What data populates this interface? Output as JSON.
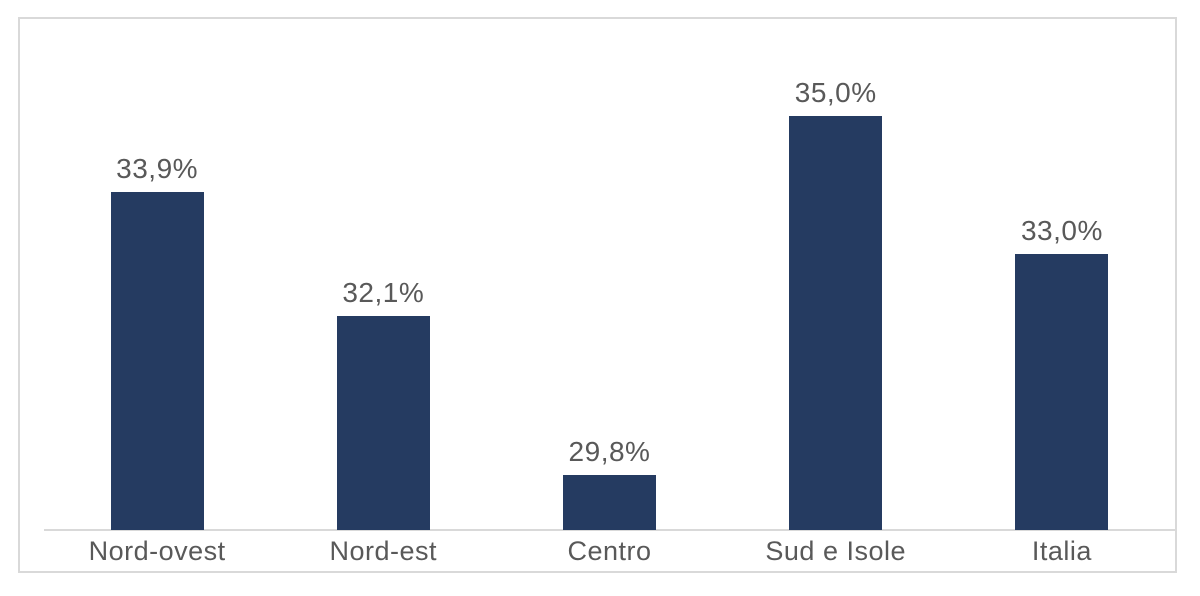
{
  "chart_data": {
    "type": "bar",
    "categories": [
      "Nord-ovest",
      "Nord-est",
      "Centro",
      "Sud e Isole",
      "Italia"
    ],
    "values": [
      33.9,
      32.1,
      29.8,
      35.0,
      33.0
    ],
    "data_labels": [
      "33,9%",
      "32,1%",
      "29,8%",
      "35,0%",
      "33,0%"
    ],
    "title": "",
    "xlabel": "",
    "ylabel": "",
    "ylim": [
      29,
      36.4
    ],
    "grid": false,
    "legend": false,
    "bar_color": "#253B61",
    "text_color": "#595959",
    "axis_line_color": "#D9D9D9",
    "frame_border_color": "#D9D9D9"
  }
}
